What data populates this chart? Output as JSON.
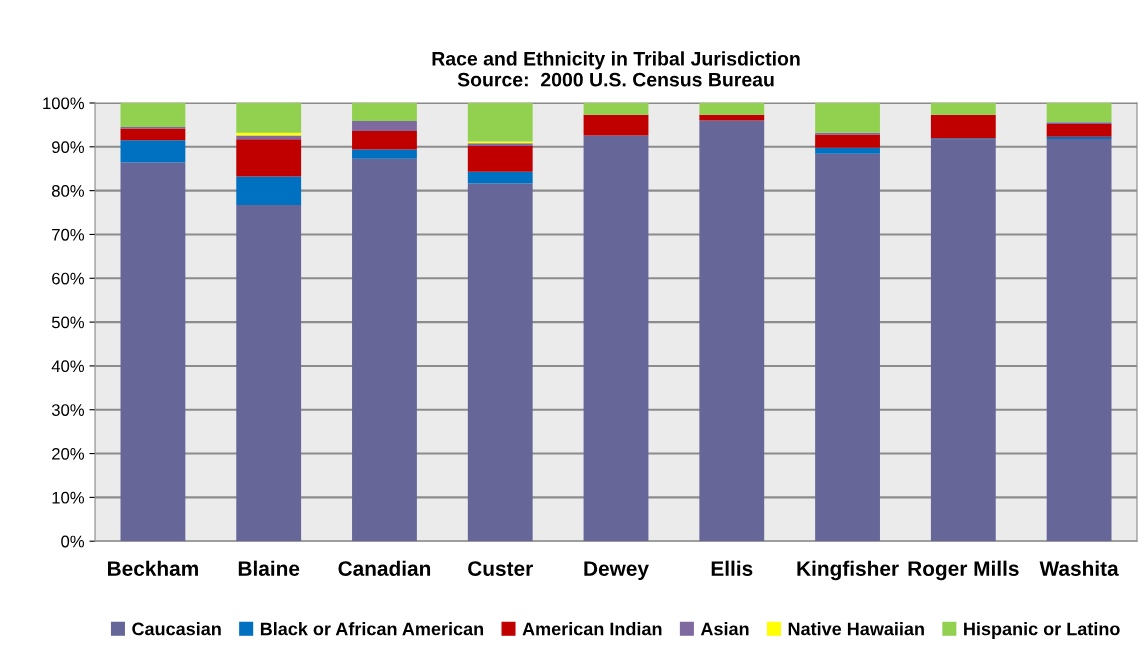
{
  "chart_data": {
    "type": "bar",
    "title": "Race and Ethnicity in Tribal Jurisdiction\nSource:  2000 U.S. Census Bureau",
    "categories": [
      "Beckham",
      "Blaine",
      "Canadian",
      "Custer",
      "Dewey",
      "Ellis",
      "Kingfisher",
      "Roger Mills",
      "Washita"
    ],
    "stacked": true,
    "series": [
      {
        "name": "Caucasian",
        "color": "#666699",
        "values": [
          86.4,
          76.7,
          87.3,
          81.6,
          92.6,
          96.0,
          88.4,
          91.6,
          91.8
        ]
      },
      {
        "name": "Black or African American",
        "color": "#0070c0",
        "values": [
          5.1,
          6.5,
          2.1,
          2.7,
          0,
          0,
          1.4,
          0.3,
          0.5
        ]
      },
      {
        "name": "American Indian",
        "color": "#c00000",
        "values": [
          2.7,
          8.5,
          4.2,
          5.9,
          4.7,
          1.3,
          3.0,
          5.4,
          2.9
        ]
      },
      {
        "name": "Asian",
        "color": "#7f6aa0",
        "values": [
          0.3,
          0.9,
          2.3,
          0.6,
          0,
          0,
          0.4,
          0,
          0.4
        ]
      },
      {
        "name": "Native Hawaiian",
        "color": "#ffff00",
        "values": [
          0,
          0.6,
          0,
          0.4,
          0,
          0,
          0,
          0,
          0
        ]
      },
      {
        "name": "Hispanic or Latino",
        "color": "#92d050",
        "values": [
          5.5,
          6.8,
          4.1,
          8.8,
          2.7,
          2.7,
          6.8,
          2.7,
          4.4
        ]
      }
    ],
    "ylim": [
      0,
      100
    ],
    "yticks": [
      {
        "value": 0,
        "label": "0%"
      },
      {
        "value": 10,
        "label": "10%"
      },
      {
        "value": 20,
        "label": "20%"
      },
      {
        "value": 30,
        "label": "30%"
      },
      {
        "value": 40,
        "label": "40%"
      },
      {
        "value": 50,
        "label": "50%"
      },
      {
        "value": 60,
        "label": "60%"
      },
      {
        "value": 70,
        "label": "70%"
      },
      {
        "value": 80,
        "label": "80%"
      },
      {
        "value": 90,
        "label": "90%"
      },
      {
        "value": 100,
        "label": "100%"
      }
    ],
    "grid": "y",
    "legend": "bottom"
  }
}
